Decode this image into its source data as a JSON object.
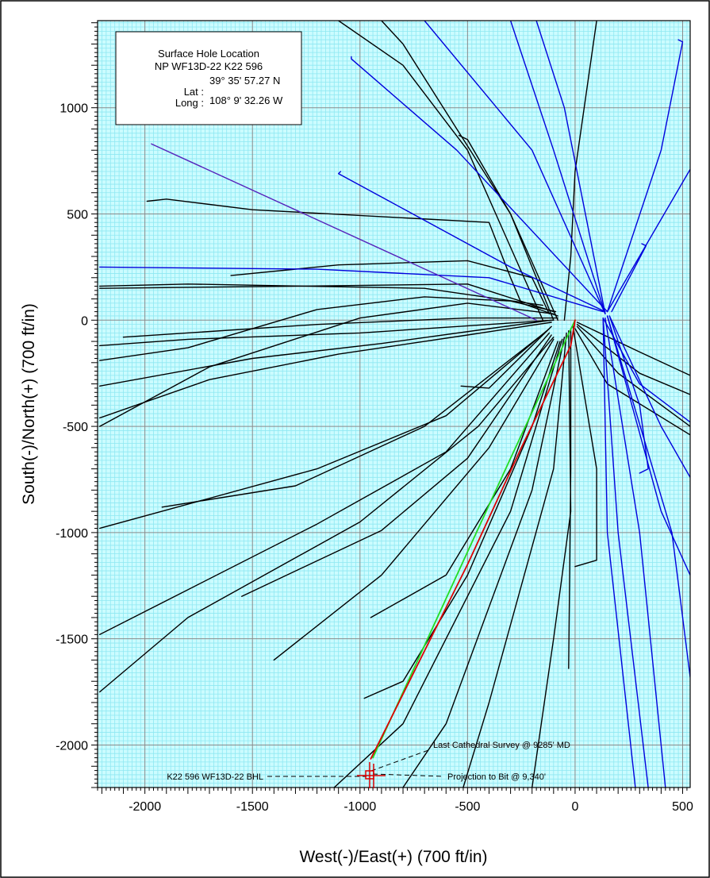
{
  "chart_data": {
    "type": "line",
    "xlabel": "West(-)/East(+) (700 ft/in)",
    "ylabel": "South(-)/North(+) (700 ft/in)",
    "xlim": [
      -2220,
      535
    ],
    "ylim": [
      -2200,
      1410
    ],
    "x_ticks": [
      -2000,
      -1500,
      -1000,
      -500,
      0,
      500
    ],
    "y_ticks": [
      -2000,
      -1500,
      -1000,
      -500,
      0,
      500,
      1000
    ],
    "grid": true,
    "info_box": {
      "title": "Surface Hole Location",
      "well": "NP WF13D-22 K22 596",
      "lat_label": "Lat :",
      "long_label": "Long :",
      "lat": "39° 35' 57.27 N",
      "long": "108° 9' 32.26 W"
    },
    "annotations": {
      "bhl": "K22 596 WF13D-22 BHL",
      "last_survey": "Last Cathedral Survey @ 9285' MD",
      "projection": "Projection to Bit @ 9,340'"
    },
    "colors": {
      "grid_minor": "#8ee8f2",
      "grid_major": "#8a8a8a",
      "background": "#ccfcff",
      "offset_black": "#000000",
      "offset_blue": "#0000dd",
      "purple": "#5522bb",
      "planned": "#22dd22",
      "actual": "#dd0000"
    },
    "series": [
      {
        "color": "offset_black",
        "points": [
          [
            -110,
            0
          ],
          [
            -400,
            -40
          ],
          [
            -900,
            -110
          ],
          [
            -1500,
            -180
          ],
          [
            -2210,
            -310
          ]
        ]
      },
      {
        "color": "offset_black",
        "points": [
          [
            -110,
            -10
          ],
          [
            -500,
            -70
          ],
          [
            -1100,
            -160
          ],
          [
            -1700,
            -280
          ],
          [
            -2210,
            -460
          ]
        ]
      },
      {
        "color": "offset_black",
        "points": [
          [
            -100,
            0
          ],
          [
            -400,
            -20
          ],
          [
            -1000,
            -60
          ],
          [
            -1800,
            -90
          ],
          [
            -2210,
            -120
          ]
        ]
      },
      {
        "color": "offset_black",
        "points": [
          [
            -80,
            10
          ],
          [
            -500,
            10
          ],
          [
            -1200,
            -20
          ],
          [
            -2100,
            -80
          ]
        ]
      },
      {
        "color": "offset_black",
        "points": [
          [
            -100,
            30
          ],
          [
            -500,
            80
          ],
          [
            -1000,
            10
          ],
          [
            -1700,
            -220
          ],
          [
            -2210,
            -500
          ]
        ]
      },
      {
        "color": "offset_black",
        "points": [
          [
            -90,
            40
          ],
          [
            -300,
            90
          ],
          [
            -700,
            110
          ],
          [
            -1200,
            50
          ],
          [
            -1800,
            -130
          ],
          [
            -2210,
            -190
          ]
        ]
      },
      {
        "color": "offset_black",
        "points": [
          [
            -100,
            40
          ],
          [
            -500,
            170
          ],
          [
            -1300,
            160
          ],
          [
            -2210,
            150
          ]
        ]
      },
      {
        "color": "offset_black",
        "points": [
          [
            -150,
            70
          ],
          [
            -700,
            150
          ],
          [
            -1800,
            170
          ],
          [
            -2210,
            160
          ]
        ]
      },
      {
        "color": "offset_black",
        "points": [
          [
            -120,
            30
          ],
          [
            -200,
            200
          ],
          [
            -500,
            280
          ],
          [
            -1100,
            260
          ],
          [
            -1600,
            210
          ]
        ]
      },
      {
        "color": "offset_black",
        "points": [
          [
            -80,
            20
          ],
          [
            -250,
            80
          ],
          [
            -300,
            200
          ],
          [
            -400,
            460
          ],
          [
            -1500,
            520
          ],
          [
            -1900,
            570
          ],
          [
            -1990,
            560
          ]
        ]
      },
      {
        "color": "offset_black",
        "points": [
          [
            -80,
            0
          ],
          [
            -300,
            500
          ],
          [
            -500,
            850
          ],
          [
            -540,
            870
          ]
        ]
      },
      {
        "color": "offset_black",
        "points": [
          [
            -100,
            0
          ],
          [
            -300,
            500
          ],
          [
            -800,
            1300
          ],
          [
            -900,
            1410
          ]
        ]
      },
      {
        "color": "offset_black",
        "points": [
          [
            -150,
            0
          ],
          [
            -500,
            800
          ],
          [
            -800,
            1200
          ],
          [
            -1100,
            1410
          ]
        ]
      },
      {
        "color": "offset_black",
        "points": [
          [
            -50,
            0
          ],
          [
            -20,
            300
          ],
          [
            0,
            700
          ],
          [
            100,
            1410
          ]
        ]
      },
      {
        "color": "offset_black",
        "points": [
          [
            -110,
            -30
          ],
          [
            -400,
            -320
          ],
          [
            -530,
            -310
          ]
        ]
      },
      {
        "color": "offset_black",
        "points": [
          [
            -120,
            -40
          ],
          [
            -600,
            -450
          ],
          [
            -1200,
            -700
          ],
          [
            -2210,
            -980
          ]
        ]
      },
      {
        "color": "offset_black",
        "points": [
          [
            -130,
            -50
          ],
          [
            -700,
            -500
          ],
          [
            -1300,
            -780
          ],
          [
            -1920,
            -880
          ]
        ]
      },
      {
        "color": "offset_black",
        "points": [
          [
            -120,
            -60
          ],
          [
            -600,
            -620
          ],
          [
            -1200,
            -960
          ],
          [
            -2210,
            -1480
          ]
        ]
      },
      {
        "color": "offset_black",
        "points": [
          [
            -110,
            -70
          ],
          [
            -500,
            -650
          ],
          [
            -900,
            -990
          ],
          [
            -1550,
            -1300
          ]
        ]
      },
      {
        "color": "offset_black",
        "points": [
          [
            -100,
            -80
          ],
          [
            -450,
            -500
          ],
          [
            -1000,
            -950
          ],
          [
            -1800,
            -1400
          ],
          [
            -2210,
            -1750
          ]
        ]
      },
      {
        "color": "offset_black",
        "points": [
          [
            -100,
            -90
          ],
          [
            -400,
            -600
          ],
          [
            -900,
            -1200
          ],
          [
            -1400,
            -1600
          ]
        ]
      },
      {
        "color": "offset_black",
        "points": [
          [
            -80,
            -100
          ],
          [
            -300,
            -700
          ],
          [
            -600,
            -1200
          ],
          [
            -950,
            -1400
          ]
        ]
      },
      {
        "color": "offset_black",
        "points": [
          [
            -70,
            -100
          ],
          [
            -200,
            -500
          ],
          [
            -500,
            -1200
          ],
          [
            -800,
            -1700
          ],
          [
            -980,
            -1780
          ]
        ]
      },
      {
        "color": "offset_black",
        "points": [
          [
            -60,
            -90
          ],
          [
            -300,
            -900
          ],
          [
            -800,
            -1900
          ],
          [
            -1120,
            -2200
          ]
        ]
      },
      {
        "color": "offset_black",
        "points": [
          [
            -50,
            -80
          ],
          [
            -200,
            -800
          ],
          [
            -600,
            -1900
          ],
          [
            -800,
            -2200
          ]
        ]
      },
      {
        "color": "offset_black",
        "points": [
          [
            -40,
            -60
          ],
          [
            -100,
            -700
          ],
          [
            -400,
            -1800
          ],
          [
            -520,
            -2200
          ]
        ]
      },
      {
        "color": "offset_black",
        "points": [
          [
            -30,
            -50
          ],
          [
            -20,
            -900
          ],
          [
            -100,
            -1500
          ],
          [
            -200,
            -2200
          ]
        ]
      },
      {
        "color": "offset_black",
        "points": [
          [
            -20,
            -40
          ],
          [
            -20,
            -700
          ],
          [
            -30,
            -1640
          ]
        ]
      },
      {
        "color": "offset_black",
        "points": [
          [
            -10,
            -30
          ],
          [
            100,
            -700
          ],
          [
            100,
            -1130
          ],
          [
            0,
            -1160
          ]
        ]
      },
      {
        "color": "offset_black",
        "points": [
          [
            10,
            -20
          ],
          [
            300,
            -250
          ],
          [
            535,
            -350
          ]
        ]
      },
      {
        "color": "offset_black",
        "points": [
          [
            10,
            -10
          ],
          [
            300,
            -150
          ],
          [
            535,
            -260
          ]
        ]
      },
      {
        "color": "offset_black",
        "points": [
          [
            10,
            -30
          ],
          [
            200,
            -250
          ],
          [
            535,
            -500
          ]
        ]
      },
      {
        "color": "offset_black",
        "points": [
          [
            0,
            -40
          ],
          [
            150,
            -300
          ],
          [
            535,
            -540
          ]
        ]
      },
      {
        "color": "offset_blue",
        "points": [
          [
            130,
            40
          ],
          [
            -400,
            200
          ],
          [
            -1200,
            240
          ],
          [
            -2210,
            250
          ]
        ]
      },
      {
        "color": "offset_blue",
        "points": [
          [
            140,
            40
          ],
          [
            -300,
            250
          ],
          [
            -1100,
            690
          ],
          [
            -1090,
            700
          ]
        ]
      },
      {
        "color": "offset_blue",
        "points": [
          [
            150,
            40
          ],
          [
            -550,
            800
          ],
          [
            -1040,
            1230
          ],
          [
            -1040,
            1240
          ]
        ]
      },
      {
        "color": "offset_blue",
        "points": [
          [
            140,
            30
          ],
          [
            -200,
            800
          ],
          [
            -700,
            1410
          ]
        ]
      },
      {
        "color": "offset_blue",
        "points": [
          [
            140,
            30
          ],
          [
            -100,
            800
          ],
          [
            -300,
            1410
          ]
        ]
      },
      {
        "color": "offset_blue",
        "points": [
          [
            140,
            30
          ],
          [
            -50,
            1000
          ],
          [
            -180,
            1410
          ]
        ]
      },
      {
        "color": "offset_blue",
        "points": [
          [
            150,
            40
          ],
          [
            400,
            800
          ],
          [
            500,
            1310
          ],
          [
            480,
            1320
          ]
        ]
      },
      {
        "color": "offset_blue",
        "points": [
          [
            150,
            40
          ],
          [
            535,
            710
          ]
        ]
      },
      {
        "color": "offset_blue",
        "points": [
          [
            170,
            40
          ],
          [
            330,
            350
          ],
          [
            310,
            360
          ]
        ]
      },
      {
        "color": "offset_blue",
        "points": [
          [
            160,
            20
          ],
          [
            300,
            -400
          ],
          [
            340,
            -700
          ],
          [
            300,
            -720
          ]
        ]
      },
      {
        "color": "offset_blue",
        "points": [
          [
            160,
            20
          ],
          [
            400,
            -500
          ],
          [
            535,
            -740
          ]
        ]
      },
      {
        "color": "offset_blue",
        "points": [
          [
            150,
            20
          ],
          [
            400,
            -900
          ],
          [
            535,
            -1200
          ]
        ]
      },
      {
        "color": "offset_blue",
        "points": [
          [
            150,
            20
          ],
          [
            450,
            -1000
          ],
          [
            535,
            -1680
          ]
        ]
      },
      {
        "color": "offset_blue",
        "points": [
          [
            140,
            10
          ],
          [
            300,
            -1000
          ],
          [
            420,
            -2200
          ]
        ]
      },
      {
        "color": "offset_blue",
        "points": [
          [
            130,
            10
          ],
          [
            200,
            -1000
          ],
          [
            340,
            -2200
          ]
        ]
      },
      {
        "color": "offset_blue",
        "points": [
          [
            130,
            10
          ],
          [
            150,
            -1000
          ],
          [
            280,
            -2200
          ]
        ]
      },
      {
        "color": "offset_blue",
        "points": [
          [
            130,
            10
          ],
          [
            300,
            -300
          ],
          [
            535,
            -480
          ]
        ]
      },
      {
        "color": "purple",
        "points": [
          [
            -180,
            0
          ],
          [
            -1970,
            830
          ]
        ]
      },
      {
        "color": "planned",
        "points": [
          [
            0,
            0
          ],
          [
            -300,
            -650
          ],
          [
            -940,
            -2060
          ]
        ]
      },
      {
        "color": "actual",
        "points": [
          [
            0,
            0
          ],
          [
            -20,
            -120
          ],
          [
            -250,
            -600
          ],
          [
            -500,
            -1150
          ],
          [
            -950,
            -2065
          ]
        ]
      }
    ]
  }
}
